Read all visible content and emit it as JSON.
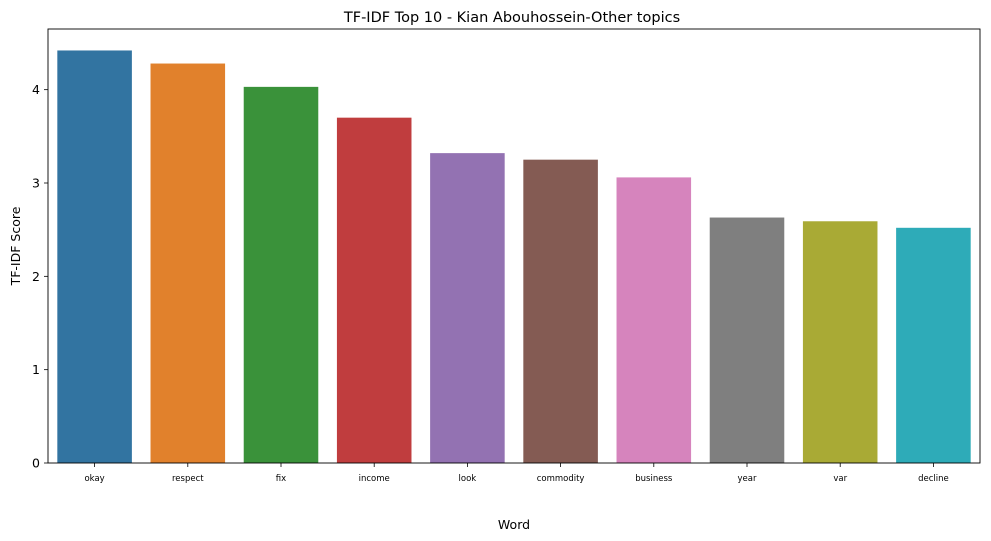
{
  "chart_data": {
    "type": "bar",
    "title": "TF-IDF Top 10 - Kian Abouhossein-Other topics",
    "xlabel": "Word",
    "ylabel": "TF-IDF Score",
    "categories": [
      "okay",
      "respect",
      "fix",
      "income",
      "look",
      "commodity",
      "business",
      "year",
      "var",
      "decline"
    ],
    "values": [
      4.42,
      4.28,
      4.03,
      3.7,
      3.32,
      3.25,
      3.06,
      2.63,
      2.59,
      2.52
    ],
    "colors": [
      "#3274a1",
      "#e1812c",
      "#3a923a",
      "#c03d3e",
      "#9372b2",
      "#845b53",
      "#d684bd",
      "#7f7f7f",
      "#a9aa35",
      "#2eabb8"
    ],
    "yticks": [
      0,
      1,
      2,
      3,
      4
    ],
    "ylim": [
      0,
      4.65
    ],
    "grid": false
  }
}
